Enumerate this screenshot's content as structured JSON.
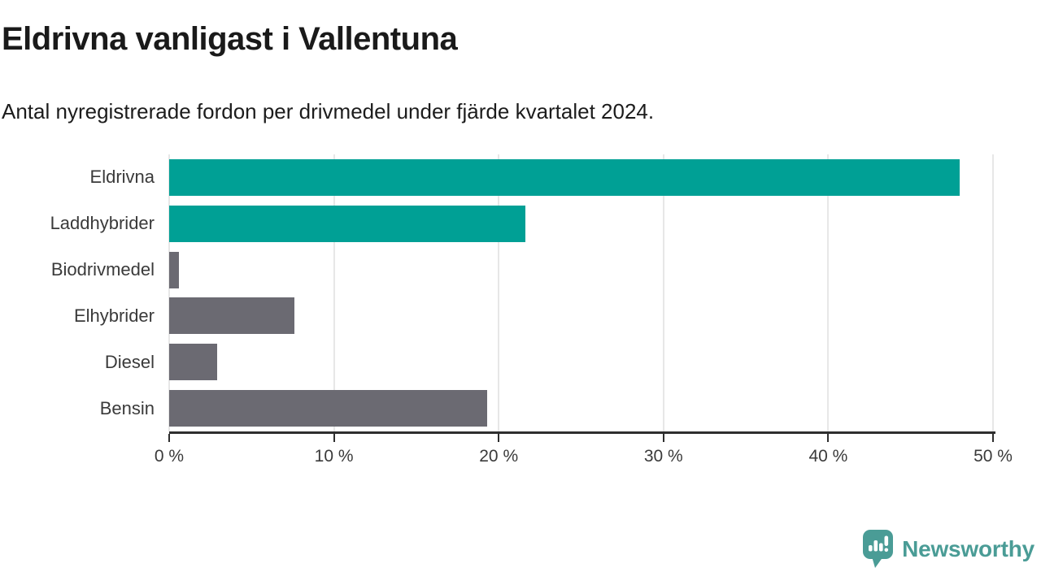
{
  "title": "Eldrivna vanligast i Vallentuna",
  "subtitle": "Antal nyregistrerade fordon per drivmedel under fjärde kvartalet 2024.",
  "brand": {
    "name": "Newsworthy",
    "color": "#4a9c96",
    "icon": "bar-chart-speech-bubble"
  },
  "colors": {
    "highlight": "#00a095",
    "default": "#6b6a72",
    "axis": "#2e2e2e",
    "grid": "#e7e7e7",
    "title": "#1a1a1a",
    "category_label": "#3a3a3a",
    "tick_label": "#3a3a3a"
  },
  "chart_data": {
    "type": "bar",
    "orientation": "horizontal",
    "title": "Eldrivna vanligast i Vallentuna",
    "subtitle": "Antal nyregistrerade fordon per drivmedel under fjärde kvartalet 2024.",
    "categories": [
      "Eldrivna",
      "Laddhybrider",
      "Biodrivmedel",
      "Elhybrider",
      "Diesel",
      "Bensin"
    ],
    "values": [
      48.0,
      21.6,
      0.6,
      7.6,
      2.9,
      19.3
    ],
    "unit": "%",
    "xlim": [
      0,
      50
    ],
    "ticks": [
      {
        "value": 0,
        "label": "0 %"
      },
      {
        "value": 10,
        "label": "10 %"
      },
      {
        "value": 20,
        "label": "20 %"
      },
      {
        "value": 30,
        "label": "30 %"
      },
      {
        "value": 40,
        "label": "40 %"
      },
      {
        "value": 50,
        "label": "50 %"
      }
    ],
    "bar_color_roles": [
      "highlight",
      "highlight",
      "default",
      "default",
      "default",
      "default"
    ],
    "grid": true,
    "legend": false
  }
}
